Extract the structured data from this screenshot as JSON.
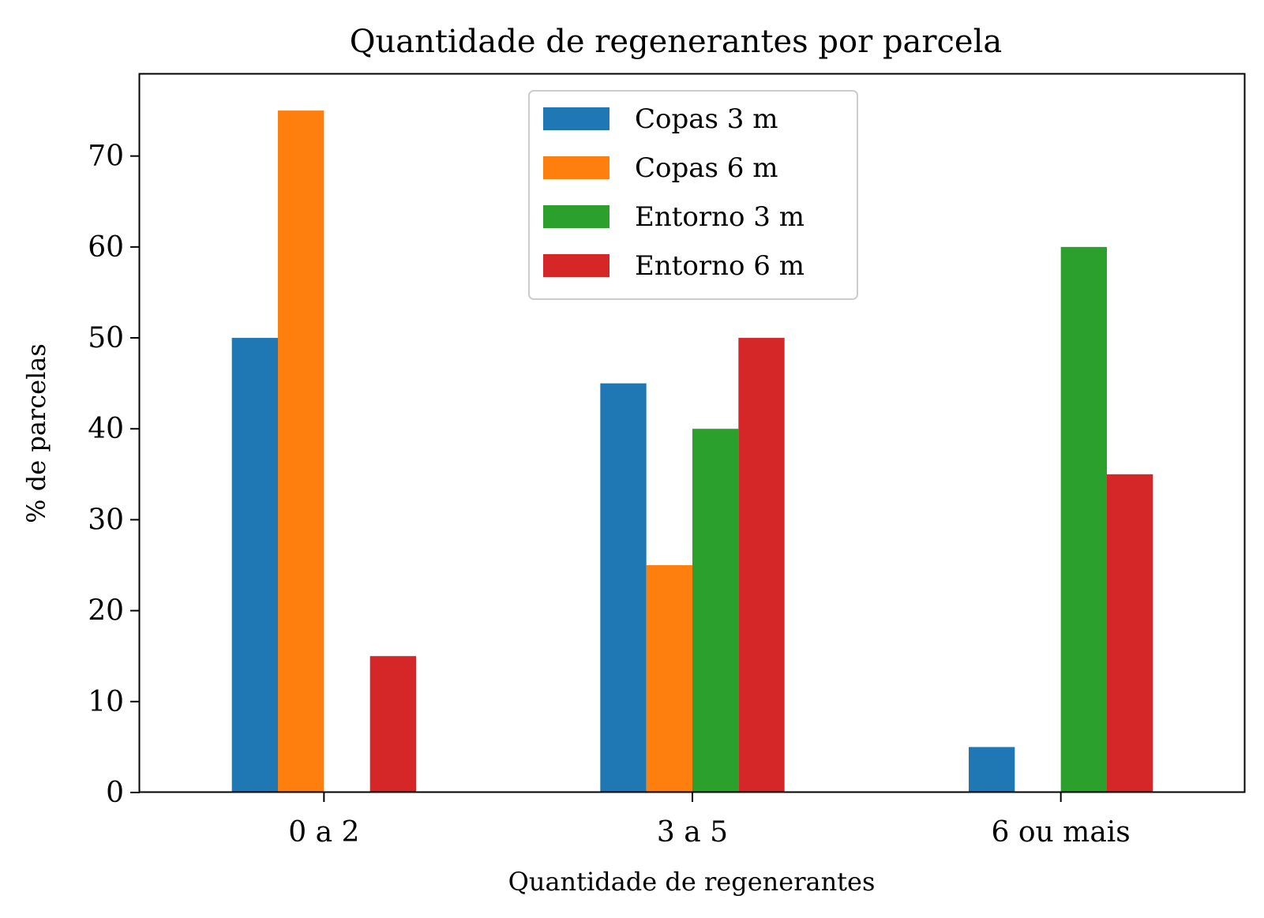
{
  "chart_data": {
    "type": "bar",
    "title": "Quantidade de regenerantes por parcela",
    "xlabel": "Quantidade de regenerantes",
    "ylabel": "% de parcelas",
    "categories": [
      "0 a 2",
      "3 a 5",
      "6 ou mais"
    ],
    "series": [
      {
        "name": "Copas 3 m",
        "color": "#1f77b4",
        "values": [
          50,
          45,
          5
        ]
      },
      {
        "name": "Copas 6 m",
        "color": "#ff7f0e",
        "values": [
          75,
          25,
          0
        ]
      },
      {
        "name": "Entorno 3 m",
        "color": "#2ca02c",
        "values": [
          0,
          40,
          60
        ]
      },
      {
        "name": "Entorno 6 m",
        "color": "#d62728",
        "values": [
          15,
          50,
          35
        ]
      }
    ],
    "ylim": [
      0,
      79
    ],
    "yticks": [
      0,
      10,
      20,
      30,
      40,
      50,
      60,
      70
    ],
    "grid": false,
    "legend": "top-center"
  }
}
